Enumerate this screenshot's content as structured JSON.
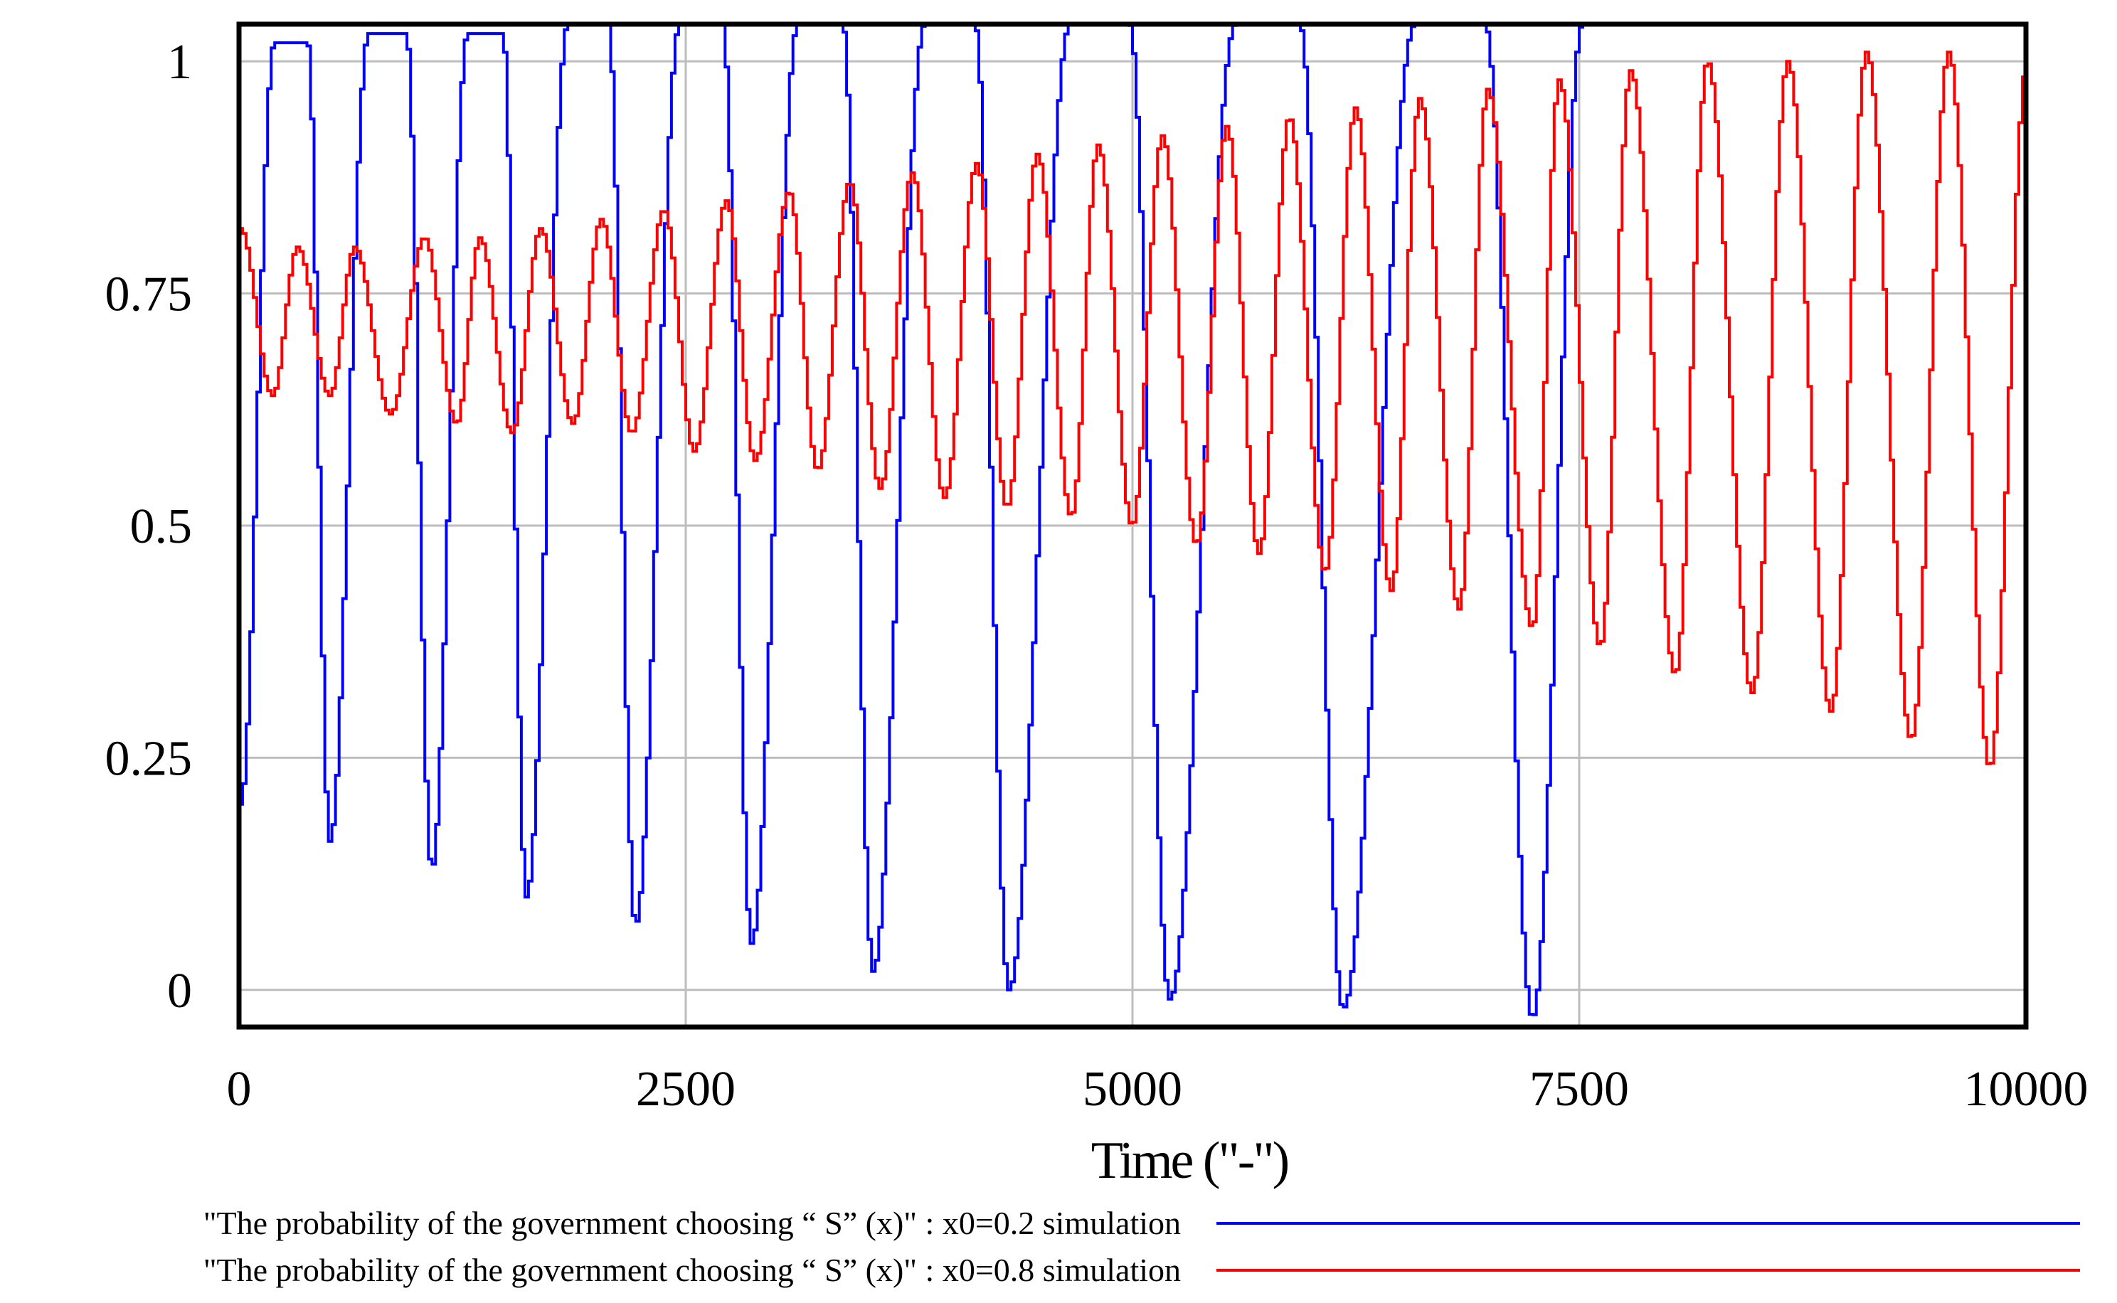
{
  "chart_data": {
    "type": "line",
    "title": "",
    "xlabel": "Time (\"-\")",
    "ylabel": "",
    "xlim": [
      0,
      10000
    ],
    "ylim": [
      -0.04,
      1.04
    ],
    "x_ticks": [
      0,
      2500,
      5000,
      7500,
      10000
    ],
    "x_tick_labels": [
      "0",
      "2500",
      "5000",
      "7500",
      "10000"
    ],
    "y_ticks": [
      0,
      0.25,
      0.5,
      0.75,
      1
    ],
    "y_tick_labels": [
      "0",
      "0.25",
      "0.5",
      "0.75",
      "1"
    ],
    "grid": true,
    "legend_position": "bottom",
    "series": [
      {
        "name": "\"The probability of the government choosing “ S” (x)\" : x0=0.2 simulation",
        "color": "#0000ff",
        "x0": 0.2,
        "cycles": [
          {
            "min_time": 0,
            "min_value": 0.2,
            "peak_value": 1.02
          },
          {
            "min_time": 500,
            "min_value": 0.16,
            "peak_value": 1.03
          },
          {
            "min_time": 1070,
            "min_value": 0.13,
            "peak_value": 1.03
          },
          {
            "min_time": 1600,
            "min_value": 0.1,
            "peak_value": 1.04
          },
          {
            "min_time": 2210,
            "min_value": 0.07,
            "peak_value": 1.04
          },
          {
            "min_time": 2860,
            "min_value": 0.05,
            "peak_value": 1.04
          },
          {
            "min_time": 3540,
            "min_value": 0.02,
            "peak_value": 1.04
          },
          {
            "min_time": 4300,
            "min_value": 0.0,
            "peak_value": 1.04
          },
          {
            "min_time": 5200,
            "min_value": -0.01,
            "peak_value": 1.04
          },
          {
            "min_time": 6170,
            "min_value": -0.02,
            "peak_value": 1.04
          },
          {
            "min_time": 7230,
            "min_value": -0.03,
            "peak_value": 1.04
          }
        ],
        "end_value": 1.04
      },
      {
        "name": "\"The probability of the government choosing “ S” (x)\" : x0=0.8 simulation",
        "color": "#ff0000",
        "x0": 0.8,
        "cycles": [
          {
            "peak_time": 320,
            "peak_value": 0.8,
            "min_time": 180,
            "min_value": 0.64
          },
          {
            "peak_time": 640,
            "peak_value": 0.8,
            "min_time": 500,
            "min_value": 0.64
          },
          {
            "peak_time": 1030,
            "peak_value": 0.81,
            "min_time": 840,
            "min_value": 0.62
          },
          {
            "peak_time": 1340,
            "peak_value": 0.81,
            "min_time": 1210,
            "min_value": 0.61
          },
          {
            "peak_time": 1680,
            "peak_value": 0.82,
            "min_time": 1520,
            "min_value": 0.6
          },
          {
            "peak_time": 2020,
            "peak_value": 0.83,
            "min_time": 1860,
            "min_value": 0.61
          },
          {
            "peak_time": 2370,
            "peak_value": 0.84,
            "min_time": 2190,
            "min_value": 0.6
          },
          {
            "peak_time": 2720,
            "peak_value": 0.85,
            "min_time": 2540,
            "min_value": 0.58
          },
          {
            "peak_time": 3070,
            "peak_value": 0.86,
            "min_time": 2880,
            "min_value": 0.57
          },
          {
            "peak_time": 3410,
            "peak_value": 0.87,
            "min_time": 3230,
            "min_value": 0.56
          },
          {
            "peak_time": 3760,
            "peak_value": 0.88,
            "min_time": 3580,
            "min_value": 0.54
          },
          {
            "peak_time": 4120,
            "peak_value": 0.89,
            "min_time": 3940,
            "min_value": 0.53
          },
          {
            "peak_time": 4460,
            "peak_value": 0.9,
            "min_time": 4290,
            "min_value": 0.52
          },
          {
            "peak_time": 4800,
            "peak_value": 0.91,
            "min_time": 4650,
            "min_value": 0.51
          },
          {
            "peak_time": 5160,
            "peak_value": 0.92,
            "min_time": 4990,
            "min_value": 0.5
          },
          {
            "peak_time": 5520,
            "peak_value": 0.93,
            "min_time": 5350,
            "min_value": 0.48
          },
          {
            "peak_time": 5870,
            "peak_value": 0.94,
            "min_time": 5700,
            "min_value": 0.47
          },
          {
            "peak_time": 6240,
            "peak_value": 0.95,
            "min_time": 6070,
            "min_value": 0.45
          },
          {
            "peak_time": 6600,
            "peak_value": 0.96,
            "min_time": 6440,
            "min_value": 0.43
          },
          {
            "peak_time": 6980,
            "peak_value": 0.97,
            "min_time": 6820,
            "min_value": 0.41
          },
          {
            "peak_time": 7380,
            "peak_value": 0.98,
            "min_time": 7230,
            "min_value": 0.39
          },
          {
            "peak_time": 7780,
            "peak_value": 0.99,
            "min_time": 7610,
            "min_value": 0.37
          },
          {
            "peak_time": 8210,
            "peak_value": 1.0,
            "min_time": 8030,
            "min_value": 0.34
          },
          {
            "peak_time": 8660,
            "peak_value": 1.0,
            "min_time": 8460,
            "min_value": 0.32
          },
          {
            "peak_time": 9100,
            "peak_value": 1.01,
            "min_time": 8900,
            "min_value": 0.3
          },
          {
            "peak_time": 9560,
            "peak_value": 1.01,
            "min_time": 9350,
            "min_value": 0.27
          }
        ],
        "last_min": {
          "time": 9790,
          "value": 0.24
        },
        "end_value": 1.0
      }
    ]
  }
}
